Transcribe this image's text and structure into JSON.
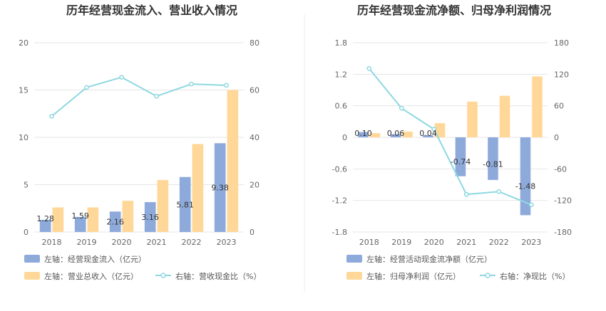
{
  "colors": {
    "bar_primary": "#8eaadb",
    "bar_secondary": "#ffd899",
    "line": "#8ed8e0",
    "grid": "#e6e6e6",
    "divider": "#eeeeee"
  },
  "chart_data": [
    {
      "type": "bar",
      "title": "历年经营现金流入、营业收入情况",
      "categories": [
        "2018",
        "2019",
        "2020",
        "2021",
        "2022",
        "2023"
      ],
      "left_axis": {
        "ticks": [
          "0",
          "5",
          "10",
          "15",
          "20"
        ],
        "ylim": [
          0,
          20
        ]
      },
      "right_axis": {
        "ticks": [
          "0",
          "20",
          "40",
          "60",
          "80"
        ],
        "ylim": [
          0,
          80
        ]
      },
      "grid": true,
      "legend_position": "bottom",
      "series": [
        {
          "name": "左轴：经营现金流入（亿元）",
          "type": "bar",
          "axis": "left",
          "values": [
            1.28,
            1.59,
            2.16,
            3.16,
            5.81,
            9.38
          ],
          "labels": [
            "1.28",
            "1.59",
            "2.16",
            "3.16",
            "5.81",
            "9.38"
          ]
        },
        {
          "name": "左轴：营业总收入（亿元）",
          "type": "bar",
          "axis": "left",
          "values": [
            2.6,
            2.6,
            3.3,
            5.5,
            9.3,
            15.0
          ]
        },
        {
          "name": "右轴：营收现金比（%）",
          "type": "line",
          "axis": "right",
          "values": [
            48.9,
            61.1,
            65.4,
            57.4,
            62.5,
            62.0
          ]
        }
      ]
    },
    {
      "type": "bar",
      "title": "历年经营现金流净额、归母净利润情况",
      "categories": [
        "2018",
        "2019",
        "2020",
        "2021",
        "2022",
        "2023"
      ],
      "left_axis": {
        "ticks": [
          "-1.8",
          "-1.2",
          "-0.6",
          "0",
          "0.6",
          "1.2",
          "1.8"
        ],
        "ylim": [
          -1.8,
          1.8
        ]
      },
      "right_axis": {
        "ticks": [
          "-180",
          "-120",
          "-60",
          "0",
          "60",
          "120",
          "180"
        ],
        "ylim": [
          -180,
          180
        ]
      },
      "grid": true,
      "legend_position": "bottom",
      "series": [
        {
          "name": "左轴：经营活动现金流净额（亿元）",
          "type": "bar",
          "axis": "left",
          "values": [
            0.1,
            0.06,
            0.04,
            -0.74,
            -0.81,
            -1.48
          ],
          "labels": [
            "0.10",
            "0.06",
            "0.04",
            "-0.74",
            "-0.81",
            "-1.48"
          ]
        },
        {
          "name": "左轴：归母净利润（亿元）",
          "type": "bar",
          "axis": "left",
          "values": [
            0.08,
            0.11,
            0.27,
            0.68,
            0.79,
            1.16
          ]
        },
        {
          "name": "右轴：净现比（%）",
          "type": "line",
          "axis": "right",
          "values": [
            130.9,
            55.3,
            15.4,
            -108.5,
            -103.2,
            -128.1
          ]
        }
      ]
    }
  ]
}
